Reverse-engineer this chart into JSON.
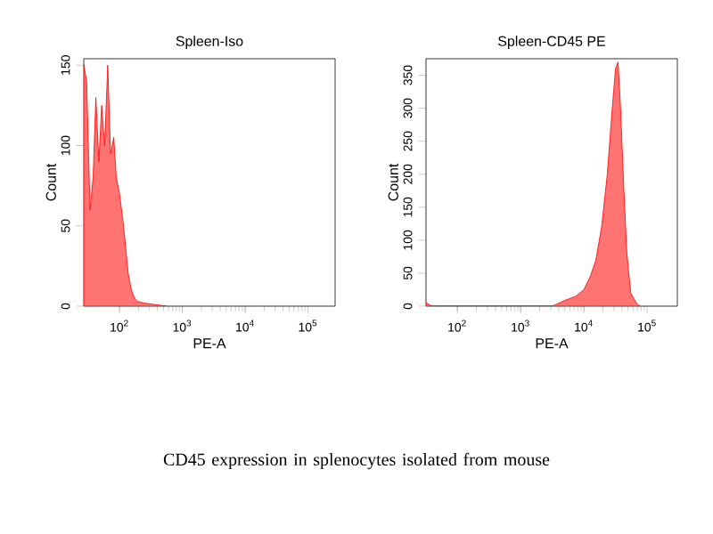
{
  "chart_data": [
    {
      "type": "area",
      "title": "Spleen-Iso",
      "xlabel": "PE-A",
      "ylabel": "Count",
      "log": "x",
      "xlim": [
        27,
        270000
      ],
      "ylim": [
        0,
        154
      ],
      "xticks": [
        {
          "value": 100,
          "label": "10$^{2}$"
        },
        {
          "value": 1000,
          "label": "10$^{3}$"
        },
        {
          "value": 10000,
          "label": "10$^{4}$"
        },
        {
          "value": 100000,
          "label": "10$^{5}$"
        }
      ],
      "yticks": [
        0,
        50,
        100,
        150
      ],
      "series": [
        {
          "color": "#ff0000",
          "x": [
            27,
            30,
            34,
            38,
            42,
            47,
            52,
            58,
            65,
            72,
            81,
            89,
            100,
            112,
            123,
            138,
            155,
            174,
            191,
            240,
            372,
            562
          ],
          "values": [
            150,
            140,
            60,
            80,
            130,
            90,
            125,
            100,
            150,
            95,
            105,
            80,
            70,
            55,
            40,
            20,
            10,
            5,
            3,
            2,
            1,
            0
          ]
        }
      ],
      "annotations": [
        "CD45 expression in splenocytes isolated from mouse"
      ]
    },
    {
      "type": "area",
      "title": "Spleen-CD45 PE",
      "xlabel": "PE-A",
      "ylabel": "Count",
      "log": "x",
      "xlim": [
        32,
        300000
      ],
      "ylim": [
        0,
        375
      ],
      "xticks": [
        {
          "value": 100,
          "label": "10$^{2}$"
        },
        {
          "value": 1000,
          "label": "10$^{3}$"
        },
        {
          "value": 10000,
          "label": "10$^{4}$"
        },
        {
          "value": 100000,
          "label": "10$^{5}$"
        }
      ],
      "yticks": [
        0,
        50,
        100,
        150,
        200,
        250,
        300,
        350
      ],
      "series": [
        {
          "color": "#ff0000",
          "x": [
            32,
            40,
            3162,
            4786,
            7413,
            10000,
            12589,
            15488,
            19055,
            23442,
            27542,
            31623,
            34674,
            38019,
            42658,
            47863,
            54954,
            69183,
            77625
          ],
          "values": [
            5,
            0,
            0,
            8,
            15,
            25,
            45,
            70,
            120,
            200,
            290,
            360,
            370,
            300,
            180,
            80,
            20,
            3,
            0
          ]
        }
      ]
    }
  ]
}
